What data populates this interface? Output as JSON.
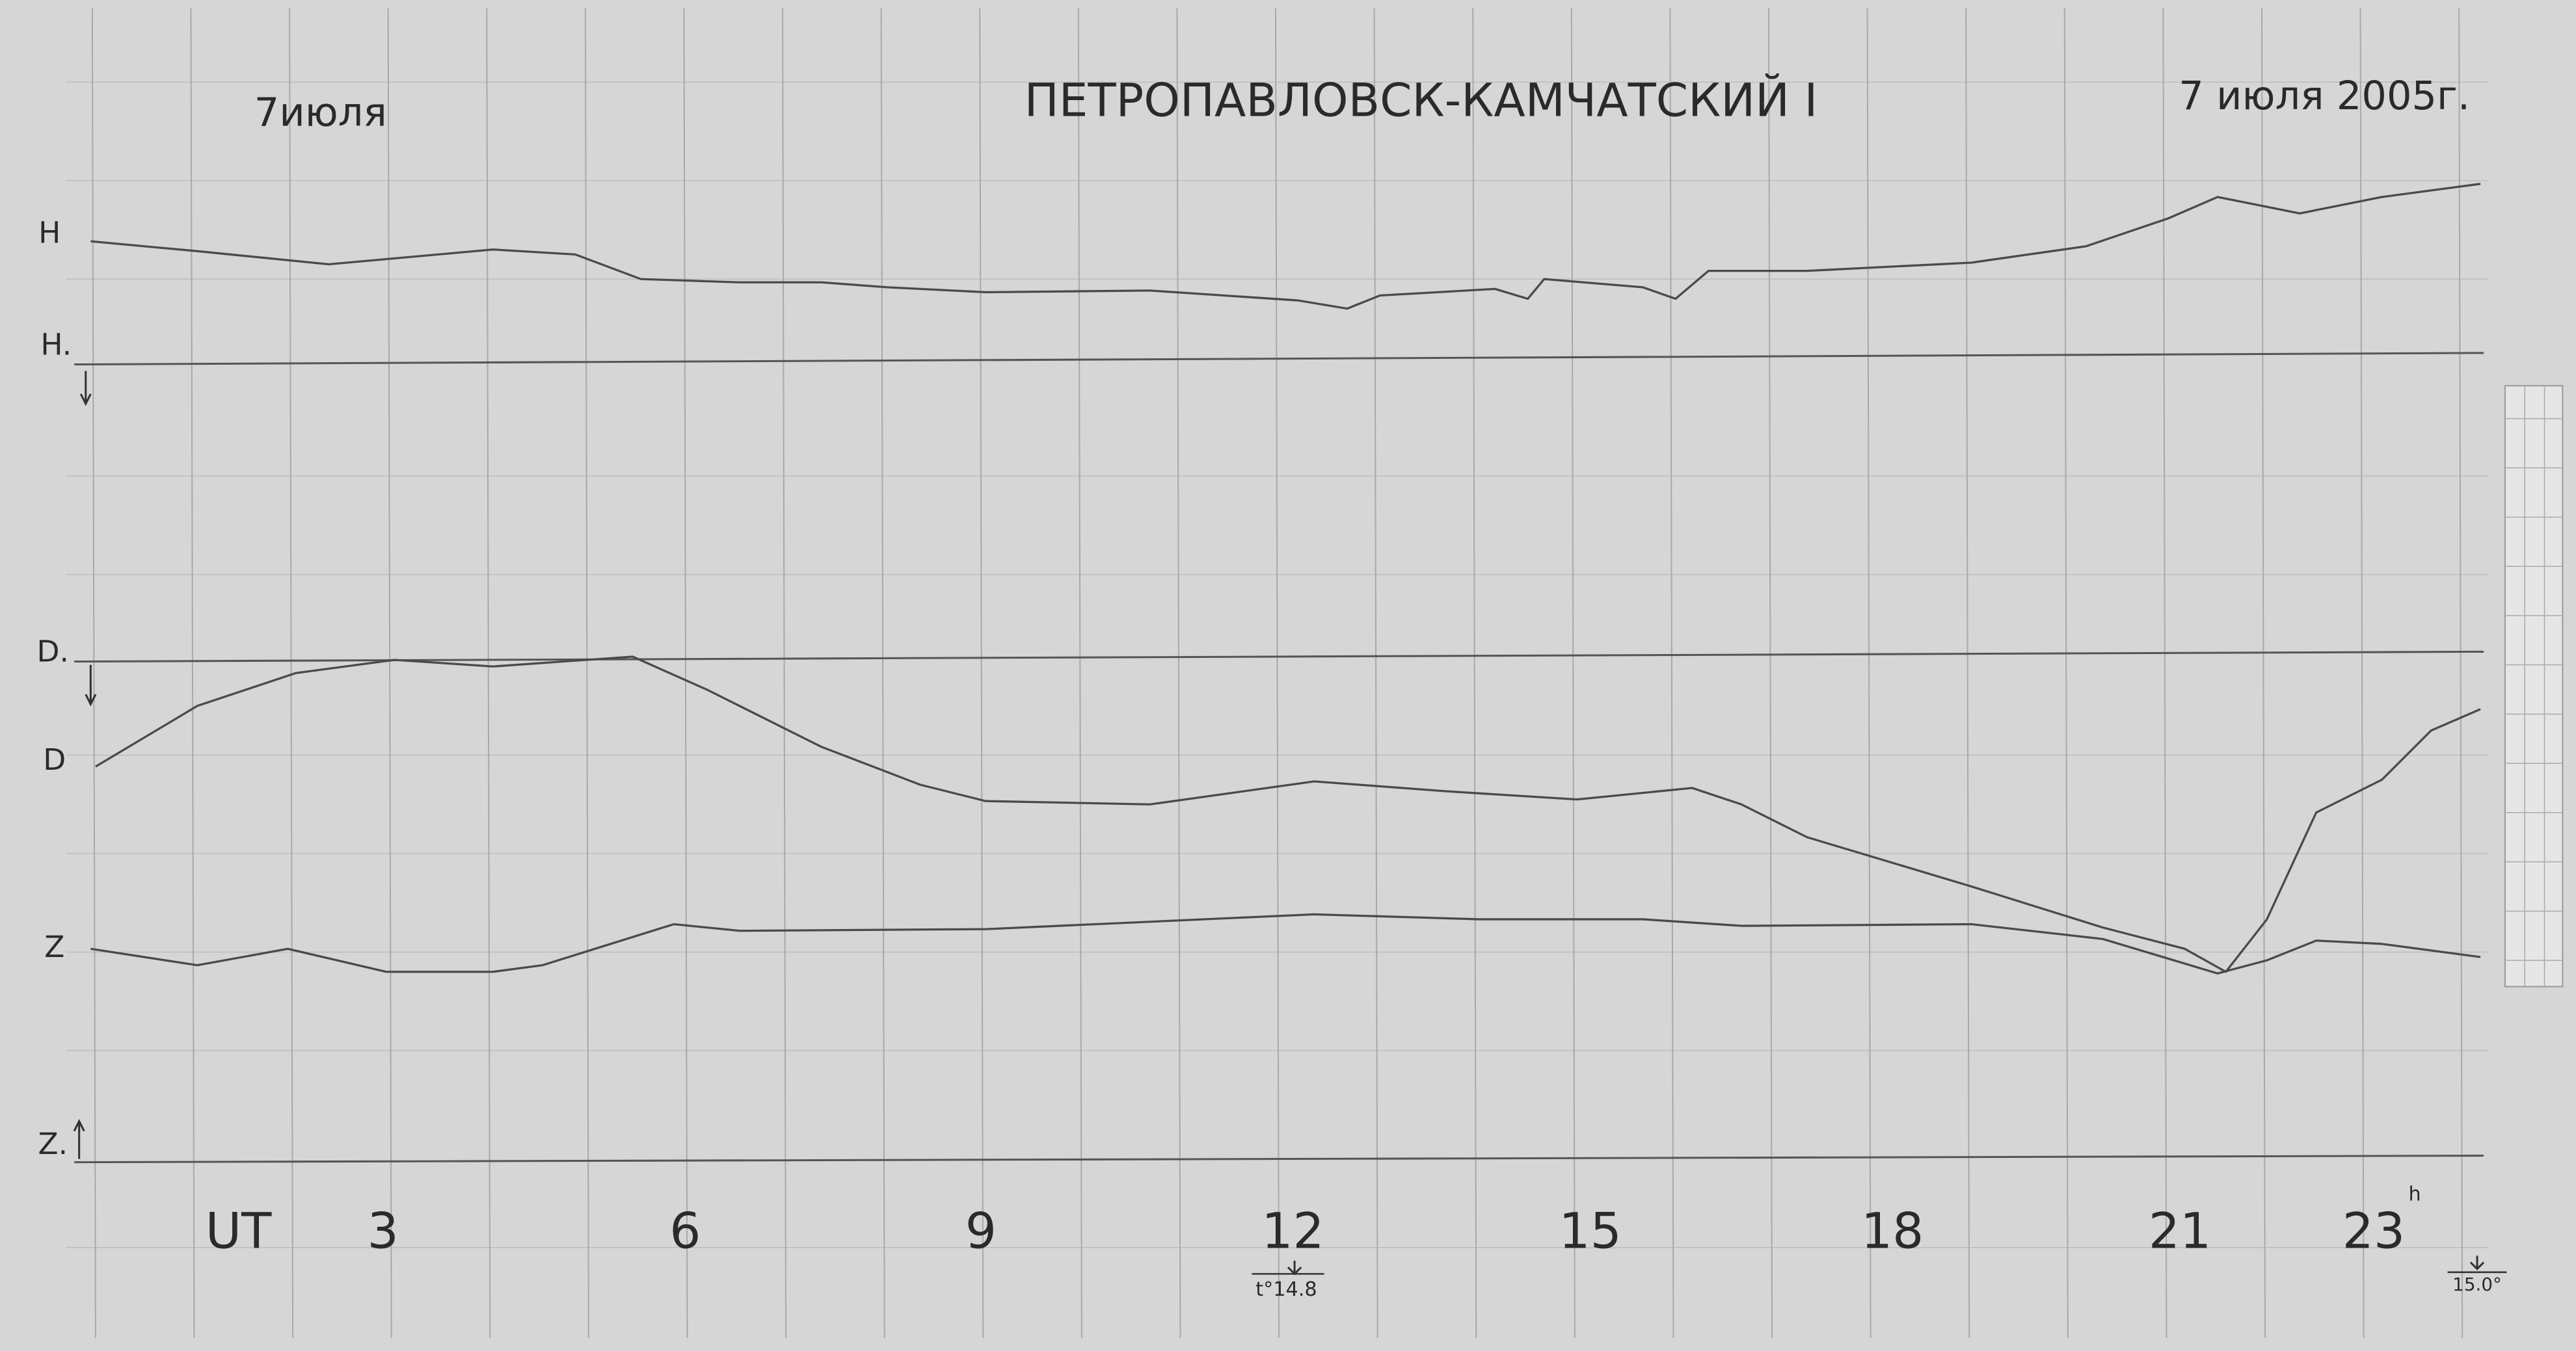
{
  "header": {
    "date_left": "7июля",
    "title": "ПЕТРОПАВЛОВСК-КАМЧАТСКИЙ I",
    "date_right": "7 июля 2005г."
  },
  "traces": {
    "labels": [
      "H",
      "H.",
      "D.",
      "D",
      "Z",
      "Z."
    ]
  },
  "time_axis": {
    "unit": "UT",
    "labels": [
      "3",
      "6",
      "9",
      "12",
      "15",
      "18",
      "21",
      "23"
    ],
    "hour_mark": "h"
  },
  "notes": [
    "t°14.8",
    "15.0°"
  ]
}
